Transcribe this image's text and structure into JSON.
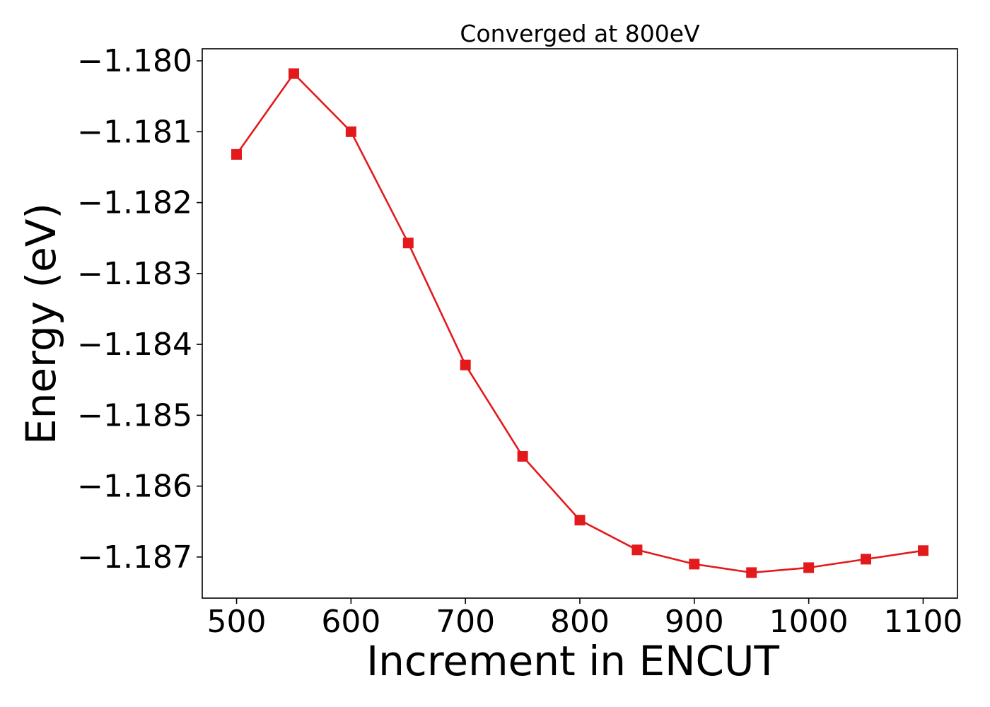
{
  "chart_data": {
    "type": "line",
    "title": "Converged at 800eV",
    "xlabel": "Increment in ENCUT",
    "ylabel": "Energy (eV)",
    "x": [
      500,
      550,
      600,
      650,
      700,
      750,
      800,
      850,
      900,
      950,
      1000,
      1050,
      1100
    ],
    "series": [
      {
        "values": [
          -1.18132,
          -1.18018,
          -1.181,
          -1.18257,
          -1.18429,
          -1.18558,
          -1.18648,
          -1.1869,
          -1.1871,
          -1.18722,
          -1.18715,
          -1.18703,
          -1.18691
        ],
        "color": "#e31a1c",
        "marker": "square"
      }
    ],
    "xticks": [
      500,
      600,
      700,
      800,
      900,
      1000,
      1100
    ],
    "xtick_labels": [
      "500",
      "600",
      "700",
      "800",
      "900",
      "1000",
      "1100"
    ],
    "yticks": [
      -1.18,
      -1.181,
      -1.182,
      -1.183,
      -1.184,
      -1.185,
      -1.186,
      -1.187
    ],
    "ytick_labels": [
      "−1.180",
      "−1.181",
      "−1.182",
      "−1.183",
      "−1.184",
      "−1.185",
      "−1.186",
      "−1.187"
    ],
    "xlim": [
      470,
      1130
    ],
    "ylim": [
      -1.18758,
      -1.17983
    ],
    "grid": false,
    "legend": "none"
  }
}
